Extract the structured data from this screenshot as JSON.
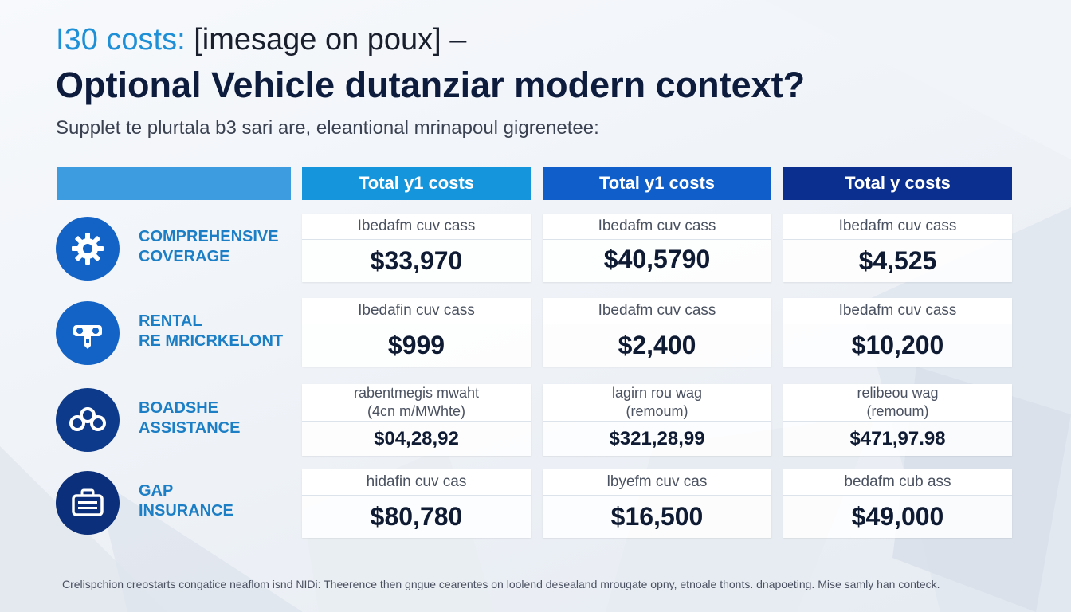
{
  "header": {
    "kicker_accent": "I30 costs:",
    "kicker_rest": " [imesage on poux]  –",
    "title": "Optional Vehicle dutanziar modern context?",
    "subtitle": "Supplet te plurtala b3 sari are, eleantional mrinapoul gigrenetee:"
  },
  "columns": [
    "Total y1 costs",
    "Total y1 costs",
    "Total y costs"
  ],
  "rows": [
    {
      "label_line1": "COMPREHENSIVE",
      "label_line2": "COVERAGE",
      "icon": "gear-icon",
      "cells": [
        {
          "label": "Ibedafm cuv cass",
          "value": "$33,970"
        },
        {
          "label": "Ibedafm cuv cass",
          "value": "$40,5790"
        },
        {
          "label": "Ibedafm cuv cass",
          "value": "$4,525"
        }
      ]
    },
    {
      "label_line1": "RENTAL",
      "label_line2": "RE MRICRKELONT",
      "icon": "car-key-icon",
      "cells": [
        {
          "label": "Ibedafin cuv cass",
          "value": "$999"
        },
        {
          "label": "Ibedafm cuv cass",
          "value": "$2,400"
        },
        {
          "label": "Ibedafm cuv cass",
          "value": "$10,200"
        }
      ]
    },
    {
      "label_line1": "BOADSHE",
      "label_line2": "ASSISTANCE",
      "icon": "chain-link-icon",
      "cells": [
        {
          "label": "rabentmegis mwaht",
          "label2": "(4cn m/MWhte)",
          "value": "$04,28,92"
        },
        {
          "label": "lagirn rou wag",
          "label2": "(remoum)",
          "value": "$321,28,99"
        },
        {
          "label": "relibeou wag",
          "label2": "(remoum)",
          "value": "$471,97.98"
        }
      ]
    },
    {
      "label_line1": "GAP",
      "label_line2": "INSURANCE",
      "icon": "briefcase-icon",
      "cells": [
        {
          "label": "hidafin cuv cas",
          "value": "$80,780"
        },
        {
          "label": "lbyefm cuv cas",
          "value": "$16,500"
        },
        {
          "label": "bedafm cub ass",
          "value": "$49,000"
        }
      ]
    }
  ],
  "footnote": "Crelispchion creostarts congatice neaflom isnd NIDi: Theerence then gngue cearentes on loolend desealand mrougate opny, etnoale thonts. dnapoeting. Mise samly han conteck.",
  "colors": {
    "accent": "#1f8fd6",
    "navy": "#0d1b3d",
    "header_col_1": "#1596dc",
    "header_col_2": "#0f5ec9",
    "header_col_3": "#0a2f8f"
  }
}
